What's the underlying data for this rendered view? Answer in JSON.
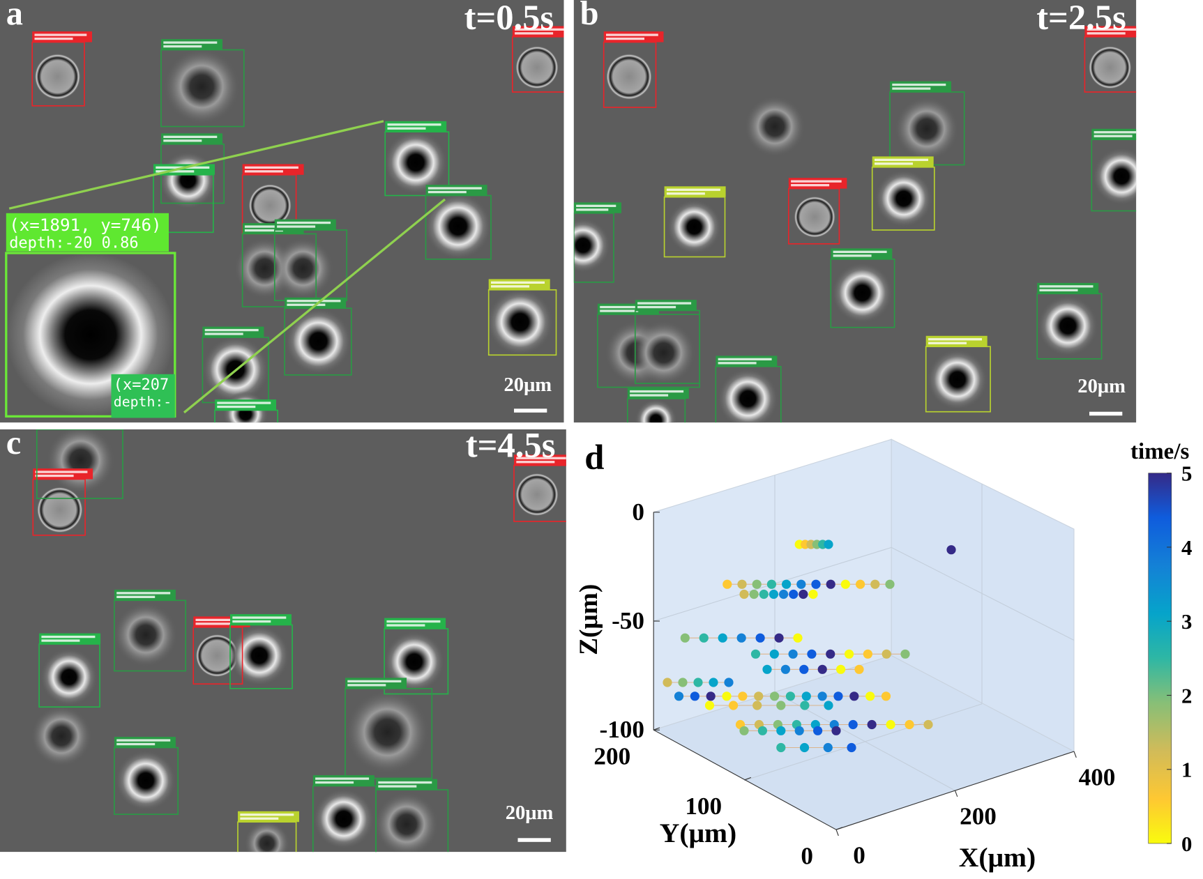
{
  "panels": [
    {
      "label": "a",
      "time": "t=0.5s",
      "scale_bar": "20μm",
      "inset_label": {
        "coords": "(x=1891, y=746)",
        "depth": "depth:-20 0.86"
      },
      "partial_label": {
        "coords": "(x=207",
        "depth": "depth:-"
      }
    },
    {
      "label": "b",
      "time": "t=2.5s",
      "scale_bar": "20μm"
    },
    {
      "label": "c",
      "time": "t=4.5s",
      "scale_bar": "20μm"
    },
    {
      "label": "d",
      "z_label": "Z(μm)",
      "y_label": "Y(μm)",
      "x_label": "X(μm)",
      "zticks": [
        0,
        -50,
        -100
      ],
      "yticks": [
        200,
        100,
        0
      ],
      "xticks": [
        0,
        200,
        400
      ],
      "colorbar": {
        "title": "time/s",
        "ticks": [
          0,
          1,
          2,
          3,
          4,
          5
        ]
      }
    }
  ]
}
